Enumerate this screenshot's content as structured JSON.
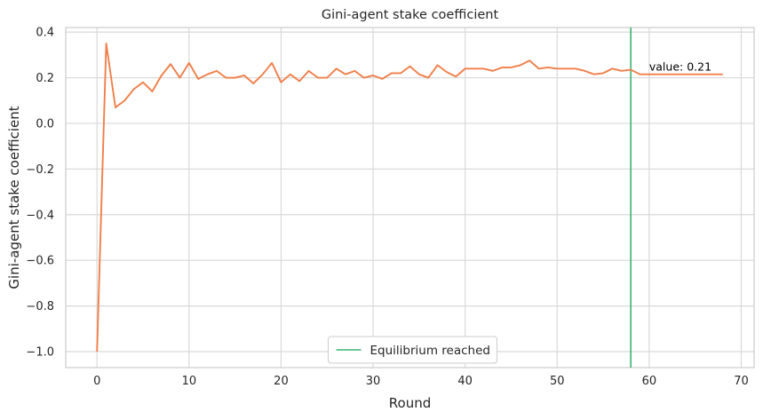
{
  "chart_data": {
    "type": "line",
    "title": "Gini-agent stake coefficient",
    "xlabel": "Round",
    "ylabel": "Gini-agent stake coefficient",
    "xlim": [
      -3.4,
      71.4
    ],
    "ylim": [
      -1.07,
      0.42
    ],
    "xticks": [
      0,
      10,
      20,
      30,
      40,
      50,
      60,
      70
    ],
    "yticks": [
      -1.0,
      -0.8,
      -0.6,
      -0.4,
      -0.2,
      0.0,
      0.2,
      0.4
    ],
    "ytick_labels": [
      "−1.0",
      "−0.8",
      "−0.6",
      "−0.4",
      "−0.2",
      "0.0",
      "0.2",
      "0.4"
    ],
    "grid": true,
    "legend_position": "lower-center",
    "series": [
      {
        "color": "#f07f4a",
        "x": [
          0,
          1,
          2,
          3,
          4,
          5,
          6,
          7,
          8,
          9,
          10,
          11,
          12,
          13,
          14,
          15,
          16,
          17,
          18,
          19,
          20,
          21,
          22,
          23,
          24,
          25,
          26,
          27,
          28,
          29,
          30,
          31,
          32,
          33,
          34,
          35,
          36,
          37,
          38,
          39,
          40,
          41,
          42,
          43,
          44,
          45,
          46,
          47,
          48,
          49,
          50,
          51,
          52,
          53,
          54,
          55,
          56,
          57,
          58,
          59,
          60,
          61,
          62,
          63,
          64,
          65,
          66,
          67,
          68
        ],
        "y": [
          -1.0,
          0.35,
          0.07,
          0.1,
          0.15,
          0.18,
          0.14,
          0.21,
          0.26,
          0.2,
          0.265,
          0.195,
          0.215,
          0.23,
          0.2,
          0.2,
          0.21,
          0.175,
          0.215,
          0.265,
          0.18,
          0.215,
          0.185,
          0.23,
          0.2,
          0.2,
          0.24,
          0.215,
          0.23,
          0.2,
          0.21,
          0.195,
          0.22,
          0.22,
          0.25,
          0.215,
          0.2,
          0.255,
          0.225,
          0.205,
          0.24,
          0.24,
          0.24,
          0.23,
          0.245,
          0.245,
          0.255,
          0.275,
          0.24,
          0.245,
          0.24,
          0.24,
          0.24,
          0.23,
          0.215,
          0.22,
          0.24,
          0.23,
          0.235,
          0.215,
          0.215,
          0.215,
          0.215,
          0.215,
          0.215,
          0.215,
          0.215,
          0.215,
          0.215
        ]
      }
    ],
    "vline": {
      "x": 58,
      "label": "Equilibrium reached",
      "color": "#3cb371"
    },
    "annotation": {
      "text": "value: 0.21",
      "x": 60,
      "y": 0.215
    }
  }
}
